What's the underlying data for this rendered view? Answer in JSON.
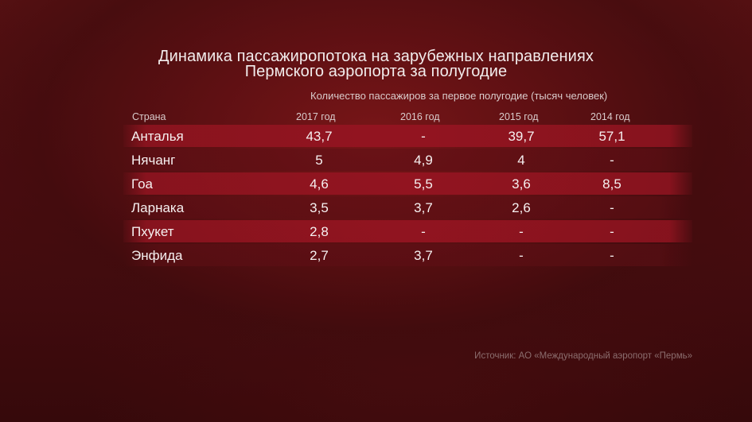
{
  "title_line1": "Динамика пассажиропотока на зарубежных направлениях",
  "title_line2": "Пермского аэропорта за полугодие",
  "caption": "Количество пассажиров за первое полугодие (тысяч человек)",
  "headers": {
    "country": "Страна",
    "y2017": "2017 год",
    "y2016": "2016 год",
    "y2015": "2015 год",
    "y2014": "2014 год"
  },
  "source": "Источник: АО «Международный аэропорт «Пермь»",
  "colors": {
    "background": "#4a0d10",
    "row_band": "#961421",
    "text": "#f6f0f0",
    "source_text": "#8b6d6e"
  },
  "chart_data": {
    "type": "table",
    "columns": [
      "Страна",
      "2017 год",
      "2016 год",
      "2015 год",
      "2014 год"
    ],
    "rows": [
      {
        "country": "Анталья",
        "y2017": "43,7",
        "y2016": "-",
        "y2015": "39,7",
        "y2014": "57,1"
      },
      {
        "country": "Нячанг",
        "y2017": "5",
        "y2016": "4,9",
        "y2015": "4",
        "y2014": "-"
      },
      {
        "country": "Гоа",
        "y2017": "4,6",
        "y2016": "5,5",
        "y2015": "3,6",
        "y2014": "8,5"
      },
      {
        "country": "Ларнака",
        "y2017": "3,5",
        "y2016": "3,7",
        "y2015": "2,6",
        "y2014": "-"
      },
      {
        "country": "Пхукет",
        "y2017": "2,8",
        "y2016": "-",
        "y2015": "-",
        "y2014": "-"
      },
      {
        "country": "Энфида",
        "y2017": "2,7",
        "y2016": "3,7",
        "y2015": "-",
        "y2014": "-"
      }
    ]
  }
}
